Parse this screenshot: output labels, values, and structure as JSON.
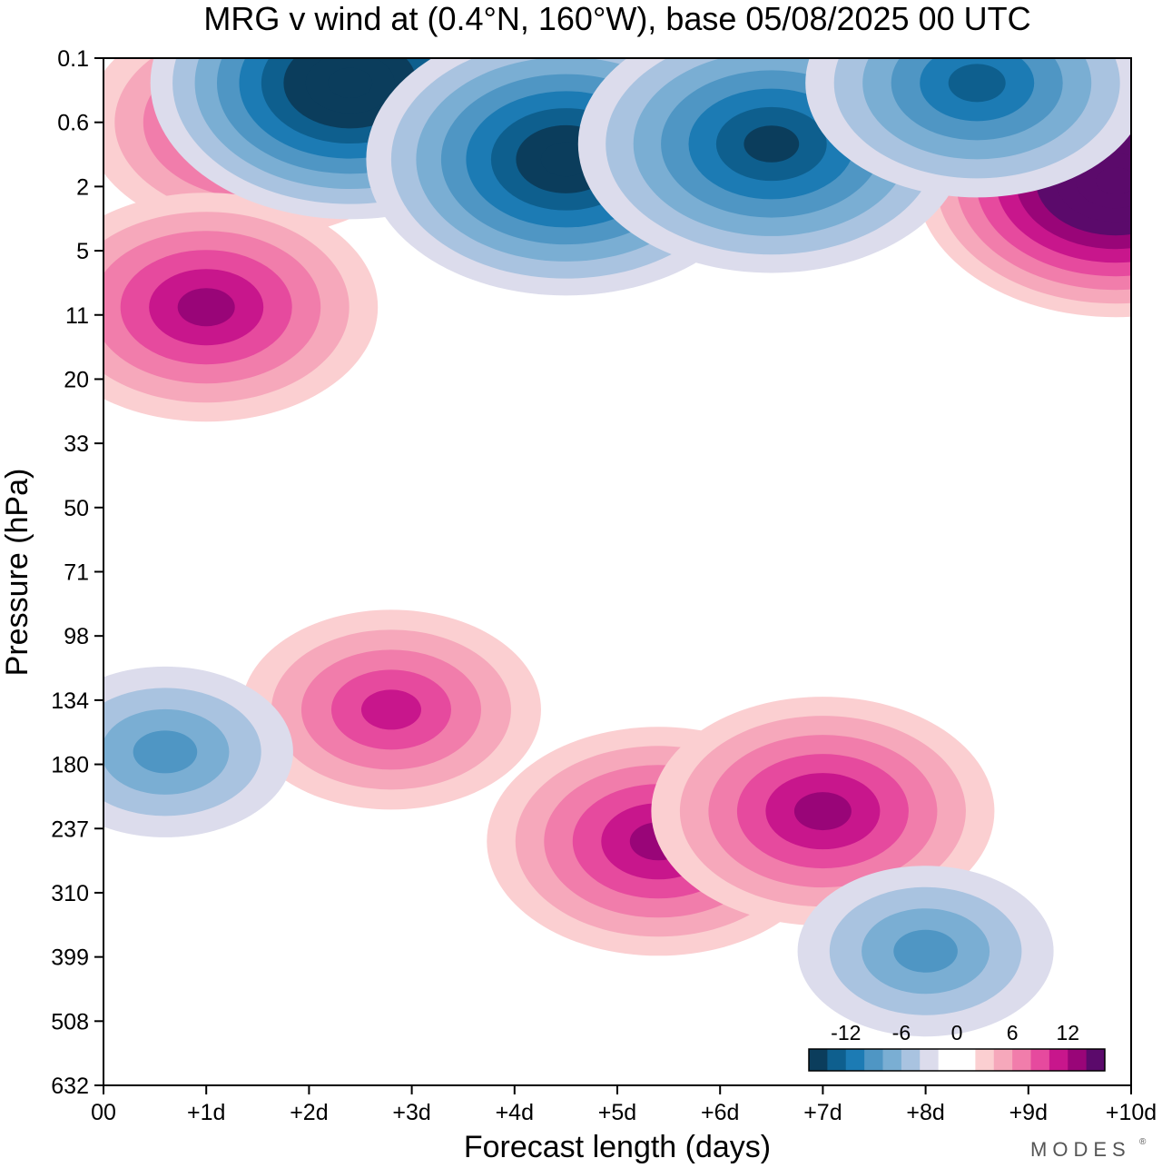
{
  "chart_data": {
    "type": "heatmap",
    "title": "MRG v wind at (0.4°N, 160°W),  base 05/08/2025  00 UTC",
    "xlabel": "Forecast length (days)",
    "ylabel": "Pressure (hPa)",
    "x_ticks": [
      "00",
      "+1d",
      "+2d",
      "+3d",
      "+4d",
      "+5d",
      "+6d",
      "+7d",
      "+8d",
      "+9d",
      "+10d"
    ],
    "y_ticks": [
      "0.1",
      "0.6",
      "2",
      "5",
      "11",
      "20",
      "33",
      "50",
      "71",
      "98",
      "134",
      "180",
      "237",
      "310",
      "399",
      "508",
      "632"
    ],
    "xlim": [
      0,
      10
    ],
    "y_scale": "log-pressure (top 0.1 hPa, bottom 632 hPa)",
    "colorbar": {
      "tick_labels": [
        "-12",
        "-6",
        "0",
        "6",
        "12"
      ],
      "tick_values": [
        -12,
        -6,
        0,
        6,
        12
      ],
      "bin_width": 1.5,
      "colors": [
        "#0b3d5c",
        "#0e5f8e",
        "#1c7bb4",
        "#4f96c4",
        "#7aaed3",
        "#a9c3e0",
        "#dcdcec",
        "#ffffff",
        "#ffffff",
        "#fbcfd1",
        "#f6a8bb",
        "#f17dab",
        "#e64a9e",
        "#c8168c",
        "#990578",
        "#5b0a6b"
      ]
    },
    "features": [
      {
        "kind": "max",
        "day": 2.4,
        "p_hpa": 0.2,
        "value": -13.5
      },
      {
        "kind": "max",
        "day": 4.5,
        "p_hpa": 1.2,
        "value": -12
      },
      {
        "kind": "max",
        "day": 6.5,
        "p_hpa": 0.9,
        "value": -10.5
      },
      {
        "kind": "max",
        "day": 8.5,
        "p_hpa": 0.2,
        "value": -9
      },
      {
        "kind": "max",
        "day": 1.5,
        "p_hpa": 0.6,
        "value": 9
      },
      {
        "kind": "max",
        "day": 9.85,
        "p_hpa": 1.8,
        "value": 15
      },
      {
        "kind": "max",
        "day": 1.0,
        "p_hpa": 10,
        "value": 9
      },
      {
        "kind": "max",
        "day": 2.8,
        "p_hpa": 140,
        "value": 7.5
      },
      {
        "kind": "max",
        "day": 5.4,
        "p_hpa": 250,
        "value": 9
      },
      {
        "kind": "max",
        "day": 7.0,
        "p_hpa": 220,
        "value": 9
      },
      {
        "kind": "max",
        "day": 0.6,
        "p_hpa": 170,
        "value": -6
      },
      {
        "kind": "max",
        "day": 8.0,
        "p_hpa": 390,
        "value": -6
      }
    ]
  },
  "branding": {
    "logo_text": "MODES"
  }
}
